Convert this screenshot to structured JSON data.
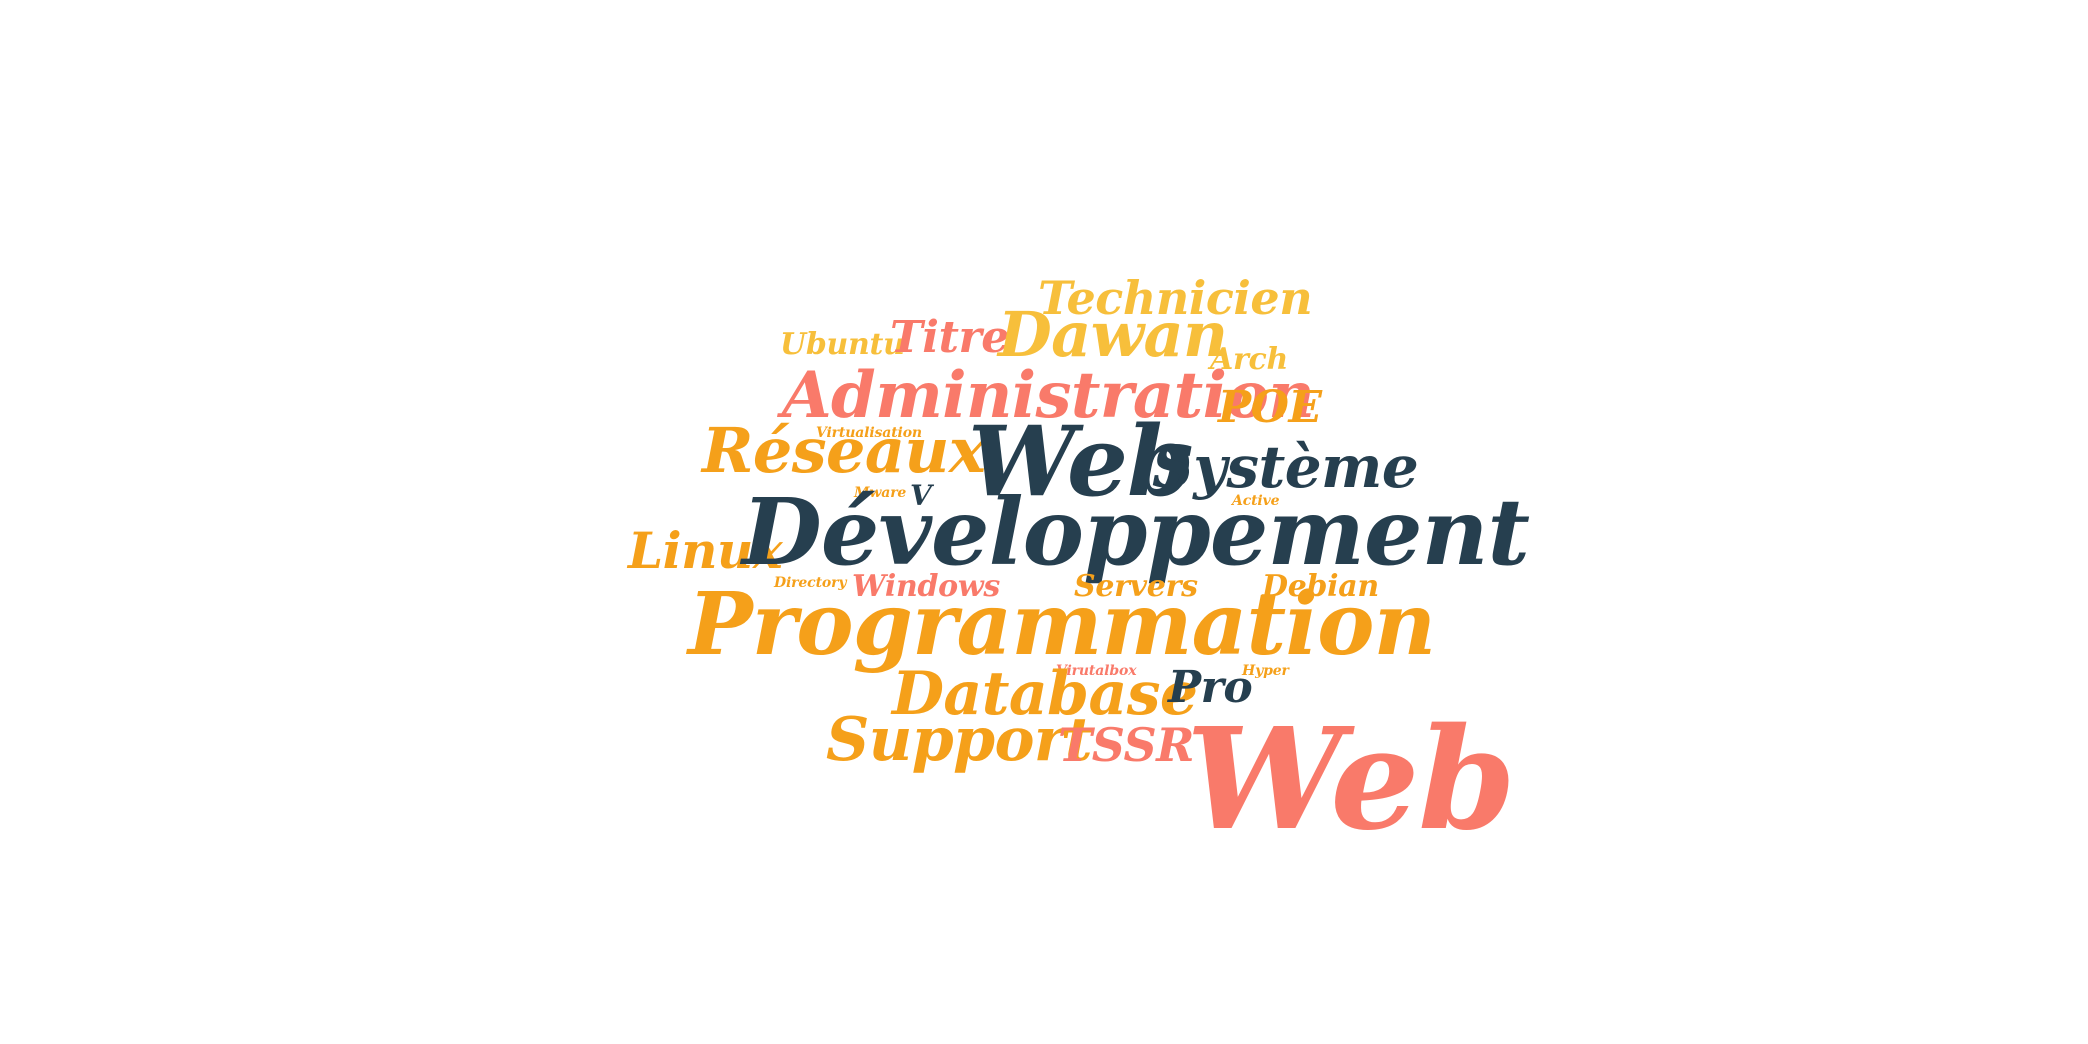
{
  "colors": {
    "orange": "#F5A01A",
    "salmon": "#F97A6A",
    "navy": "#263F4F",
    "gold": "#F7BF3B"
  },
  "words": [
    {
      "text": "Technicien",
      "color": "gold"
    },
    {
      "text": "Ubuntu",
      "color": "gold"
    },
    {
      "text": "Titre",
      "color": "salmon"
    },
    {
      "text": "Dawan",
      "color": "gold"
    },
    {
      "text": "Arch",
      "color": "gold"
    },
    {
      "text": "Administration",
      "color": "salmon"
    },
    {
      "text": "POE",
      "color": "orange"
    },
    {
      "text": "Virtualisation",
      "color": "orange"
    },
    {
      "text": "Réseaux",
      "color": "orange"
    },
    {
      "text": "Web",
      "color": "navy"
    },
    {
      "text": "Système",
      "color": "navy"
    },
    {
      "text": "V",
      "color": "navy"
    },
    {
      "text": "Mware",
      "color": "orange"
    },
    {
      "text": "Active",
      "color": "orange"
    },
    {
      "text": "Linux",
      "color": "orange"
    },
    {
      "text": "Développement",
      "color": "navy"
    },
    {
      "text": "Directory",
      "color": "orange"
    },
    {
      "text": "Windows",
      "color": "salmon"
    },
    {
      "text": "Servers",
      "color": "orange"
    },
    {
      "text": "Debian",
      "color": "orange"
    },
    {
      "text": "Programmation",
      "color": "orange"
    },
    {
      "text": "Virutalbox",
      "color": "salmon"
    },
    {
      "text": "Hyper",
      "color": "orange"
    },
    {
      "text": "Database",
      "color": "orange"
    },
    {
      "text": "Pro",
      "color": "navy"
    },
    {
      "text": "Support",
      "color": "orange"
    },
    {
      "text": "TSSR",
      "color": "salmon"
    },
    {
      "text": "Web",
      "color": "salmon"
    }
  ]
}
